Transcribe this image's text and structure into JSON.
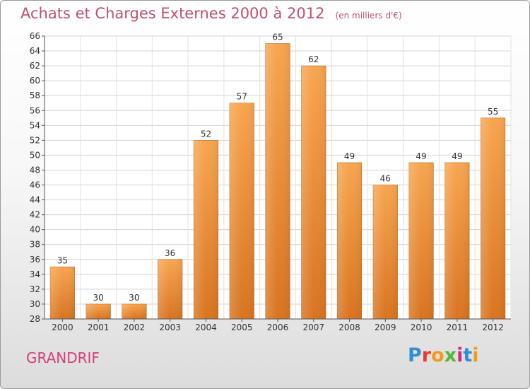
{
  "chart_data": {
    "type": "bar",
    "title": "Achats et Charges Externes 2000 à 2012",
    "subtitle": "(en milliers d'€)",
    "categories": [
      "2000",
      "2001",
      "2002",
      "2003",
      "2004",
      "2005",
      "2006",
      "2007",
      "2008",
      "2009",
      "2010",
      "2011",
      "2012"
    ],
    "values": [
      35,
      30,
      30,
      36,
      52,
      57,
      65,
      62,
      49,
      46,
      49,
      49,
      55
    ],
    "ylim": [
      28,
      66
    ],
    "yticks": [
      28,
      30,
      32,
      34,
      36,
      38,
      40,
      42,
      44,
      46,
      48,
      50,
      52,
      54,
      56,
      58,
      60,
      62,
      64,
      66
    ],
    "grid": true,
    "bar_color": "#f0922e"
  },
  "commune_name": "GRANDRIF",
  "logo": {
    "letters": [
      "P",
      "r",
      "o",
      "x",
      "i",
      "t",
      "i"
    ],
    "colors": [
      "#2f8fd6",
      "#e8392f",
      "#f29a1e",
      "#58b43a",
      "#d4287a",
      "#2f8fd6",
      "#f29a1e"
    ]
  }
}
